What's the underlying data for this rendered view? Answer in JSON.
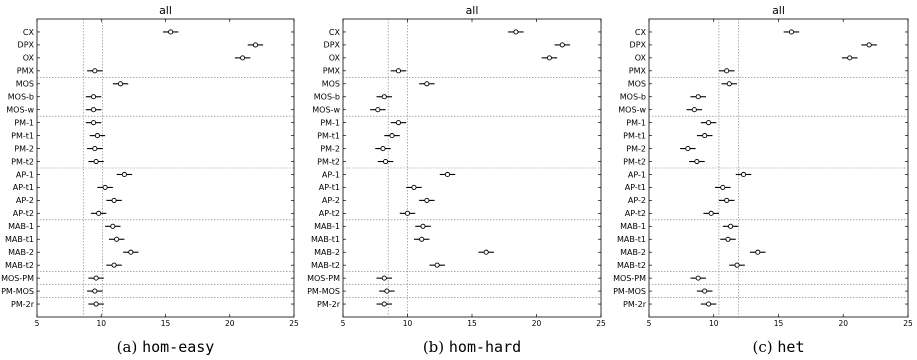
{
  "chart_data": [
    {
      "type": "dot-errorbar",
      "title": "all",
      "caption": {
        "prefix": "(a)",
        "name": "hom-easy"
      },
      "xlim": [
        5,
        25
      ],
      "xticks": [
        "5",
        "10",
        "15",
        "20",
        "25"
      ],
      "categories": [
        "CX",
        "DPX",
        "OX",
        "PMX",
        "MOS",
        "MOS-b",
        "MOS-w",
        "PM-1",
        "PM-t1",
        "PM-2",
        "PM-t2",
        "AP-1",
        "AP-t1",
        "AP-2",
        "AP-t2",
        "MAB-1",
        "MAB-t1",
        "MAB-2",
        "MAB-t2",
        "MOS-PM",
        "PM-MOS",
        "PM-2r"
      ],
      "group_sizes": [
        4,
        3,
        4,
        4,
        4,
        1,
        1,
        1
      ],
      "reference_lines": [
        8.6,
        10.1
      ],
      "means": [
        15.4,
        22.0,
        21.0,
        9.5,
        11.5,
        9.4,
        9.4,
        9.4,
        9.7,
        9.5,
        9.6,
        11.8,
        10.3,
        11.0,
        9.8,
        10.9,
        11.2,
        12.3,
        11.0,
        9.6,
        9.5,
        9.6
      ],
      "halfwidths": [
        0.6,
        0.6,
        0.6,
        0.6,
        0.6,
        0.6,
        0.6,
        0.6,
        0.6,
        0.6,
        0.6,
        0.6,
        0.6,
        0.6,
        0.6,
        0.6,
        0.6,
        0.6,
        0.6,
        0.6,
        0.6,
        0.6
      ]
    },
    {
      "type": "dot-errorbar",
      "title": "all",
      "caption": {
        "prefix": "(b)",
        "name": "hom-hard"
      },
      "xlim": [
        5,
        25
      ],
      "xticks": [
        "5",
        "10",
        "15",
        "20",
        "25"
      ],
      "categories": [
        "CX",
        "DPX",
        "OX",
        "PMX",
        "MOS",
        "MOS-b",
        "MOS-w",
        "PM-1",
        "PM-t1",
        "PM-2",
        "PM-t2",
        "AP-1",
        "AP-t1",
        "AP-2",
        "AP-t2",
        "MAB-1",
        "MAB-t1",
        "MAB-2",
        "MAB-t2",
        "MOS-PM",
        "PM-MOS",
        "PM-2r"
      ],
      "group_sizes": [
        4,
        3,
        4,
        4,
        4,
        1,
        1,
        1
      ],
      "reference_lines": [
        8.5,
        10.0
      ],
      "means": [
        18.4,
        22.0,
        21.0,
        9.3,
        11.5,
        8.2,
        7.7,
        9.3,
        8.8,
        8.1,
        8.3,
        13.1,
        10.5,
        11.5,
        10.0,
        11.2,
        11.1,
        16.1,
        12.3,
        8.2,
        8.4,
        8.2
      ],
      "halfwidths": [
        0.6,
        0.6,
        0.6,
        0.6,
        0.6,
        0.6,
        0.6,
        0.6,
        0.6,
        0.6,
        0.6,
        0.6,
        0.6,
        0.6,
        0.6,
        0.6,
        0.6,
        0.6,
        0.6,
        0.6,
        0.6,
        0.6
      ]
    },
    {
      "type": "dot-errorbar",
      "title": "all",
      "caption": {
        "prefix": "(c)",
        "name": "het"
      },
      "xlim": [
        5,
        25
      ],
      "xticks": [
        "5",
        "10",
        "15",
        "20",
        "25"
      ],
      "categories": [
        "CX",
        "DPX",
        "OX",
        "PMX",
        "MOS",
        "MOS-b",
        "MOS-w",
        "PM-1",
        "PM-t1",
        "PM-2",
        "PM-t2",
        "AP-1",
        "AP-t1",
        "AP-2",
        "AP-t2",
        "MAB-1",
        "MAB-t1",
        "MAB-2",
        "MAB-t2",
        "MOS-PM",
        "PM-MOS",
        "PM-2r"
      ],
      "group_sizes": [
        4,
        3,
        4,
        4,
        4,
        1,
        1,
        1
      ],
      "reference_lines": [
        10.4,
        11.9
      ],
      "means": [
        16.0,
        22.0,
        20.5,
        11.0,
        11.2,
        8.8,
        8.5,
        9.6,
        9.3,
        8.0,
        8.7,
        12.3,
        10.7,
        11.0,
        9.8,
        11.3,
        11.1,
        13.4,
        11.8,
        8.8,
        9.3,
        9.6
      ],
      "halfwidths": [
        0.6,
        0.6,
        0.6,
        0.6,
        0.6,
        0.6,
        0.6,
        0.6,
        0.6,
        0.6,
        0.6,
        0.6,
        0.6,
        0.6,
        0.6,
        0.6,
        0.6,
        0.6,
        0.6,
        0.6,
        0.6,
        0.6
      ]
    }
  ]
}
